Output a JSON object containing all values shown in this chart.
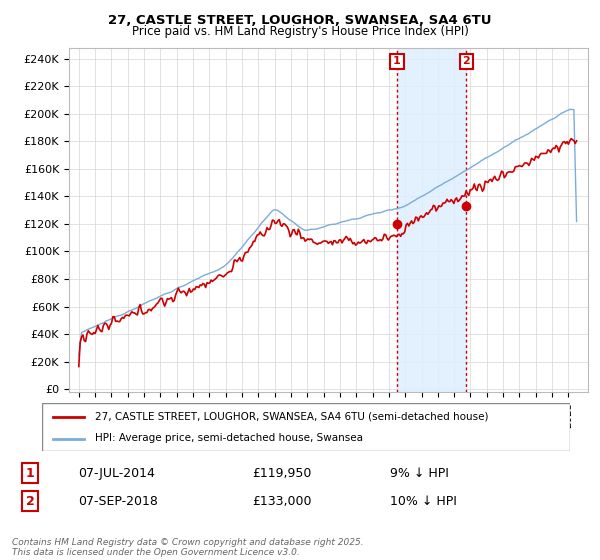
{
  "title1": "27, CASTLE STREET, LOUGHOR, SWANSEA, SA4 6TU",
  "title2": "Price paid vs. HM Land Registry's House Price Index (HPI)",
  "legend_red": "27, CASTLE STREET, LOUGHOR, SWANSEA, SA4 6TU (semi-detached house)",
  "legend_blue": "HPI: Average price, semi-detached house, Swansea",
  "marker1_date": "07-JUL-2014",
  "marker1_price": "£119,950",
  "marker1_hpi": "9% ↓ HPI",
  "marker2_date": "07-SEP-2018",
  "marker2_price": "£133,000",
  "marker2_hpi": "10% ↓ HPI",
  "copyright": "Contains HM Land Registry data © Crown copyright and database right 2025.\nThis data is licensed under the Open Government Licence v3.0.",
  "ylim": [
    0,
    240000
  ],
  "yticks": [
    0,
    20000,
    40000,
    60000,
    80000,
    100000,
    120000,
    140000,
    160000,
    180000,
    200000,
    220000,
    240000
  ],
  "background_color": "#ffffff",
  "red_color": "#cc0000",
  "blue_color": "#7aaddb",
  "shade_color": "#ddeeff"
}
